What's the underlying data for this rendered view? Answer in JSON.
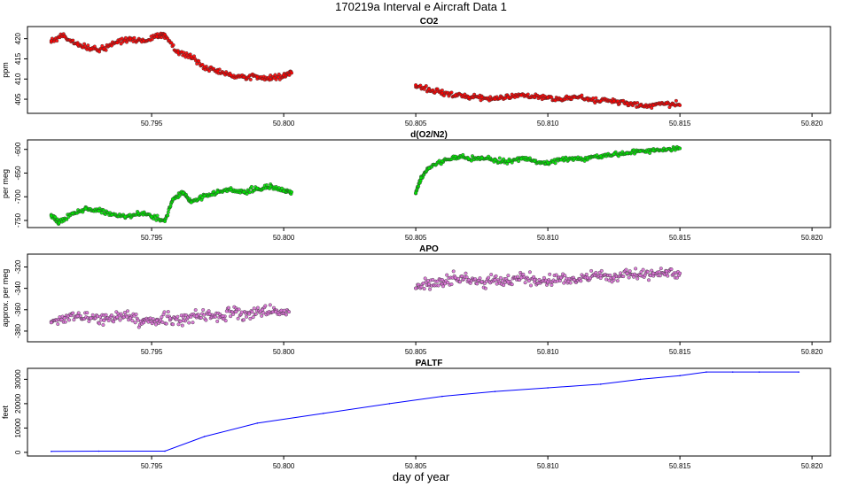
{
  "figure": {
    "title": "170219a   Interval e Aircraft Data 1",
    "xlabel": "day of year"
  },
  "chart_data": [
    {
      "type": "scatter",
      "title": "CO2",
      "ylabel": "ppm",
      "color": "#ff0000",
      "xlim": [
        50.7903,
        50.8207
      ],
      "ylim": [
        401.5,
        423
      ],
      "xticks": [
        50.795,
        50.8,
        50.805,
        50.81,
        50.815,
        50.82
      ],
      "yticks": [
        405,
        410,
        415,
        420
      ],
      "segments": [
        {
          "x": [
            50.7912,
            50.7917,
            50.7922,
            50.7927,
            50.7932,
            50.7937,
            50.7942,
            50.7947,
            50.7952,
            50.7955,
            50.796,
            50.7965,
            50.797,
            50.7975,
            50.798,
            50.7985,
            50.799,
            50.7995,
            50.8,
            50.8003
          ],
          "y": [
            419.5,
            420.5,
            418.5,
            417.5,
            417.5,
            419.0,
            420.0,
            419.5,
            420.5,
            421.0,
            416.5,
            415.5,
            413.0,
            412.0,
            411.0,
            410.5,
            410.5,
            410.0,
            411.0,
            411.5
          ]
        },
        {
          "x": [
            50.805,
            50.8055,
            50.806,
            50.8065,
            50.807,
            50.8075,
            50.808,
            50.8085,
            50.809,
            50.8095,
            50.81,
            50.8105,
            50.811,
            50.8115,
            50.812,
            50.8125,
            50.813,
            50.8135,
            50.814,
            50.8145,
            50.815
          ],
          "y": [
            408.5,
            407.5,
            406.5,
            406.0,
            405.5,
            405.5,
            405.0,
            405.5,
            406.0,
            405.5,
            405.5,
            405.0,
            405.5,
            405.0,
            404.5,
            404.5,
            404.0,
            403.5,
            403.5,
            404.0,
            403.5
          ]
        }
      ]
    },
    {
      "type": "scatter",
      "title": "d(O2/N2)",
      "ylabel": "per meg",
      "color": "#00e600",
      "xlim": [
        50.7903,
        50.8207
      ],
      "ylim": [
        -765,
        -580
      ],
      "xticks": [
        50.795,
        50.8,
        50.805,
        50.81,
        50.815,
        50.82
      ],
      "yticks": [
        -750,
        -700,
        -650,
        -600
      ],
      "segments": [
        {
          "x": [
            50.7912,
            50.7915,
            50.792,
            50.7925,
            50.793,
            50.7935,
            50.794,
            50.7945,
            50.795,
            50.7955,
            50.7958,
            50.7962,
            50.7965,
            50.797,
            50.7975,
            50.798,
            50.7985,
            50.799,
            50.7995,
            50.8,
            50.8003
          ],
          "y": [
            -740,
            -755,
            -735,
            -725,
            -730,
            -738,
            -742,
            -735,
            -742,
            -752,
            -705,
            -692,
            -712,
            -698,
            -690,
            -685,
            -690,
            -682,
            -678,
            -688,
            -690
          ]
        },
        {
          "x": [
            50.805,
            50.8052,
            50.8055,
            50.806,
            50.8065,
            50.807,
            50.8075,
            50.808,
            50.8085,
            50.809,
            50.8095,
            50.81,
            50.8105,
            50.811,
            50.8115,
            50.812,
            50.8125,
            50.813,
            50.8135,
            50.814,
            50.8145,
            50.815
          ],
          "y": [
            -692,
            -660,
            -640,
            -625,
            -615,
            -620,
            -618,
            -622,
            -625,
            -620,
            -625,
            -628,
            -622,
            -620,
            -618,
            -614,
            -610,
            -608,
            -604,
            -602,
            -600,
            -598
          ]
        }
      ]
    },
    {
      "type": "scatter",
      "title": "APO",
      "ylabel": "approx. per meg",
      "color": "#da70d6",
      "xlim": [
        50.7903,
        50.8207
      ],
      "ylim": [
        -390,
        -308
      ],
      "xticks": [
        50.795,
        50.8,
        50.805,
        50.81,
        50.815,
        50.82
      ],
      "yticks": [
        -380,
        -360,
        -340,
        -320
      ],
      "segments": [
        {
          "x": [
            50.7912,
            50.7917,
            50.7922,
            50.7927,
            50.7932,
            50.7937,
            50.7942,
            50.7947,
            50.7952,
            50.7957,
            50.7962,
            50.7967,
            50.7972,
            50.7977,
            50.7982,
            50.7987,
            50.7992,
            50.7997,
            50.8002
          ],
          "y": [
            -372,
            -368,
            -366,
            -368,
            -370,
            -367,
            -368,
            -372,
            -370,
            -368,
            -370,
            -366,
            -364,
            -366,
            -362,
            -364,
            -360,
            -362,
            -362
          ]
        },
        {
          "x": [
            50.805,
            50.8055,
            50.806,
            50.8065,
            50.807,
            50.8075,
            50.808,
            50.8085,
            50.809,
            50.8095,
            50.81,
            50.8105,
            50.811,
            50.8115,
            50.812,
            50.8125,
            50.813,
            50.8135,
            50.814,
            50.8145,
            50.815
          ],
          "y": [
            -340,
            -336,
            -332,
            -330,
            -332,
            -334,
            -332,
            -334,
            -330,
            -332,
            -334,
            -330,
            -332,
            -330,
            -328,
            -330,
            -326,
            -328,
            -326,
            -324,
            -326
          ]
        }
      ]
    },
    {
      "type": "line",
      "title": "PALTF",
      "ylabel": "feet",
      "color": "#0000ff",
      "xlim": [
        50.7903,
        50.8207
      ],
      "ylim": [
        -1500,
        34500
      ],
      "xticks": [
        50.795,
        50.8,
        50.805,
        50.81,
        50.815,
        50.82
      ],
      "yticks": [
        0,
        10000,
        20000,
        30000
      ],
      "x": [
        50.7912,
        50.793,
        50.7955,
        50.797,
        50.799,
        50.8015,
        50.804,
        50.806,
        50.808,
        50.81,
        50.812,
        50.8135,
        50.815,
        50.816,
        50.817,
        50.818,
        50.8195
      ],
      "y": [
        400,
        500,
        500,
        6500,
        12000,
        16000,
        20000,
        23000,
        25000,
        26500,
        28000,
        30000,
        31500,
        33000,
        33000,
        33000,
        33000
      ]
    }
  ]
}
